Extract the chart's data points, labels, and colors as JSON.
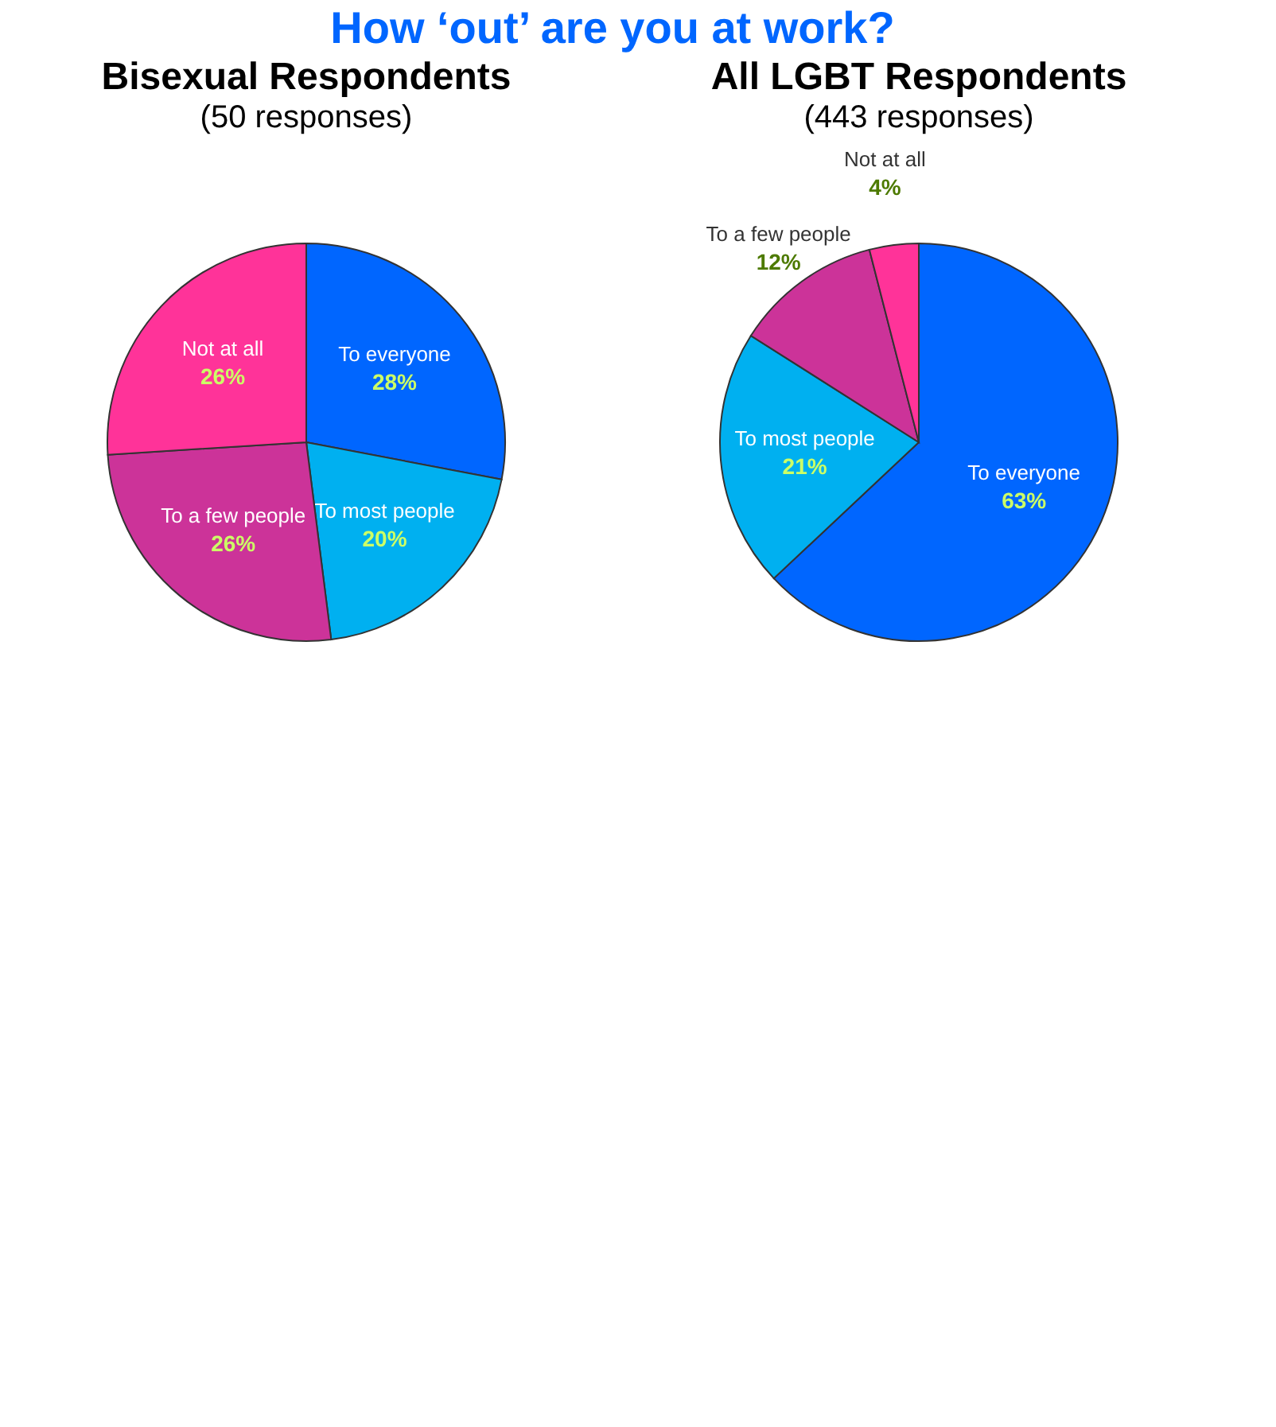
{
  "chart_data": [
    {
      "type": "pie",
      "title": "Bisexual Respondents",
      "subtitle": "(50 responses)",
      "annotations": [
        "How ‘out’ are you at work?"
      ],
      "categories": [
        "To everyone",
        "To most people",
        "To a few people",
        "Not at all"
      ],
      "values": [
        28,
        20,
        26,
        26
      ],
      "value_labels": [
        "28%",
        "20%",
        "26%",
        "26%"
      ],
      "colors": [
        "#0066ff",
        "#00b0f0",
        "#cc3399",
        "#ff3399"
      ],
      "legend": false
    },
    {
      "type": "pie",
      "title": "All LGBT Respondents",
      "subtitle": "(443 responses)",
      "categories": [
        "To everyone",
        "To most people",
        "To a few people",
        "Not at all"
      ],
      "values": [
        63,
        21,
        12,
        4
      ],
      "value_labels": [
        "63%",
        "21%",
        "12%",
        "4%"
      ],
      "colors": [
        "#0066ff",
        "#00b0f0",
        "#cc3399",
        "#ff3399"
      ],
      "legend": false
    }
  ]
}
